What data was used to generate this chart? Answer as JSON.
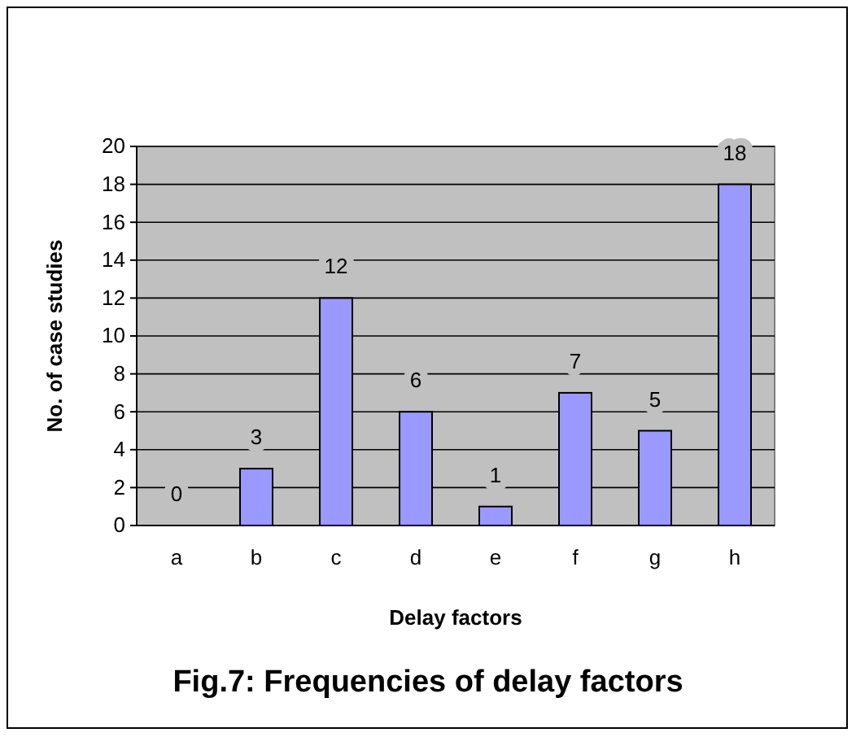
{
  "chart_data": {
    "type": "bar",
    "title": "Fig.7: Frequencies of delay factors",
    "xlabel": "Delay factors",
    "ylabel": "No. of case studies",
    "categories": [
      "a",
      "b",
      "c",
      "d",
      "e",
      "f",
      "g",
      "h"
    ],
    "values": [
      0,
      3,
      12,
      6,
      1,
      7,
      5,
      18
    ],
    "color": "#9999ff",
    "ylim": [
      0,
      20
    ],
    "yticks": [
      0,
      2,
      4,
      6,
      8,
      10,
      12,
      14,
      16,
      18,
      20
    ],
    "grid": "y",
    "data_labels": true
  }
}
